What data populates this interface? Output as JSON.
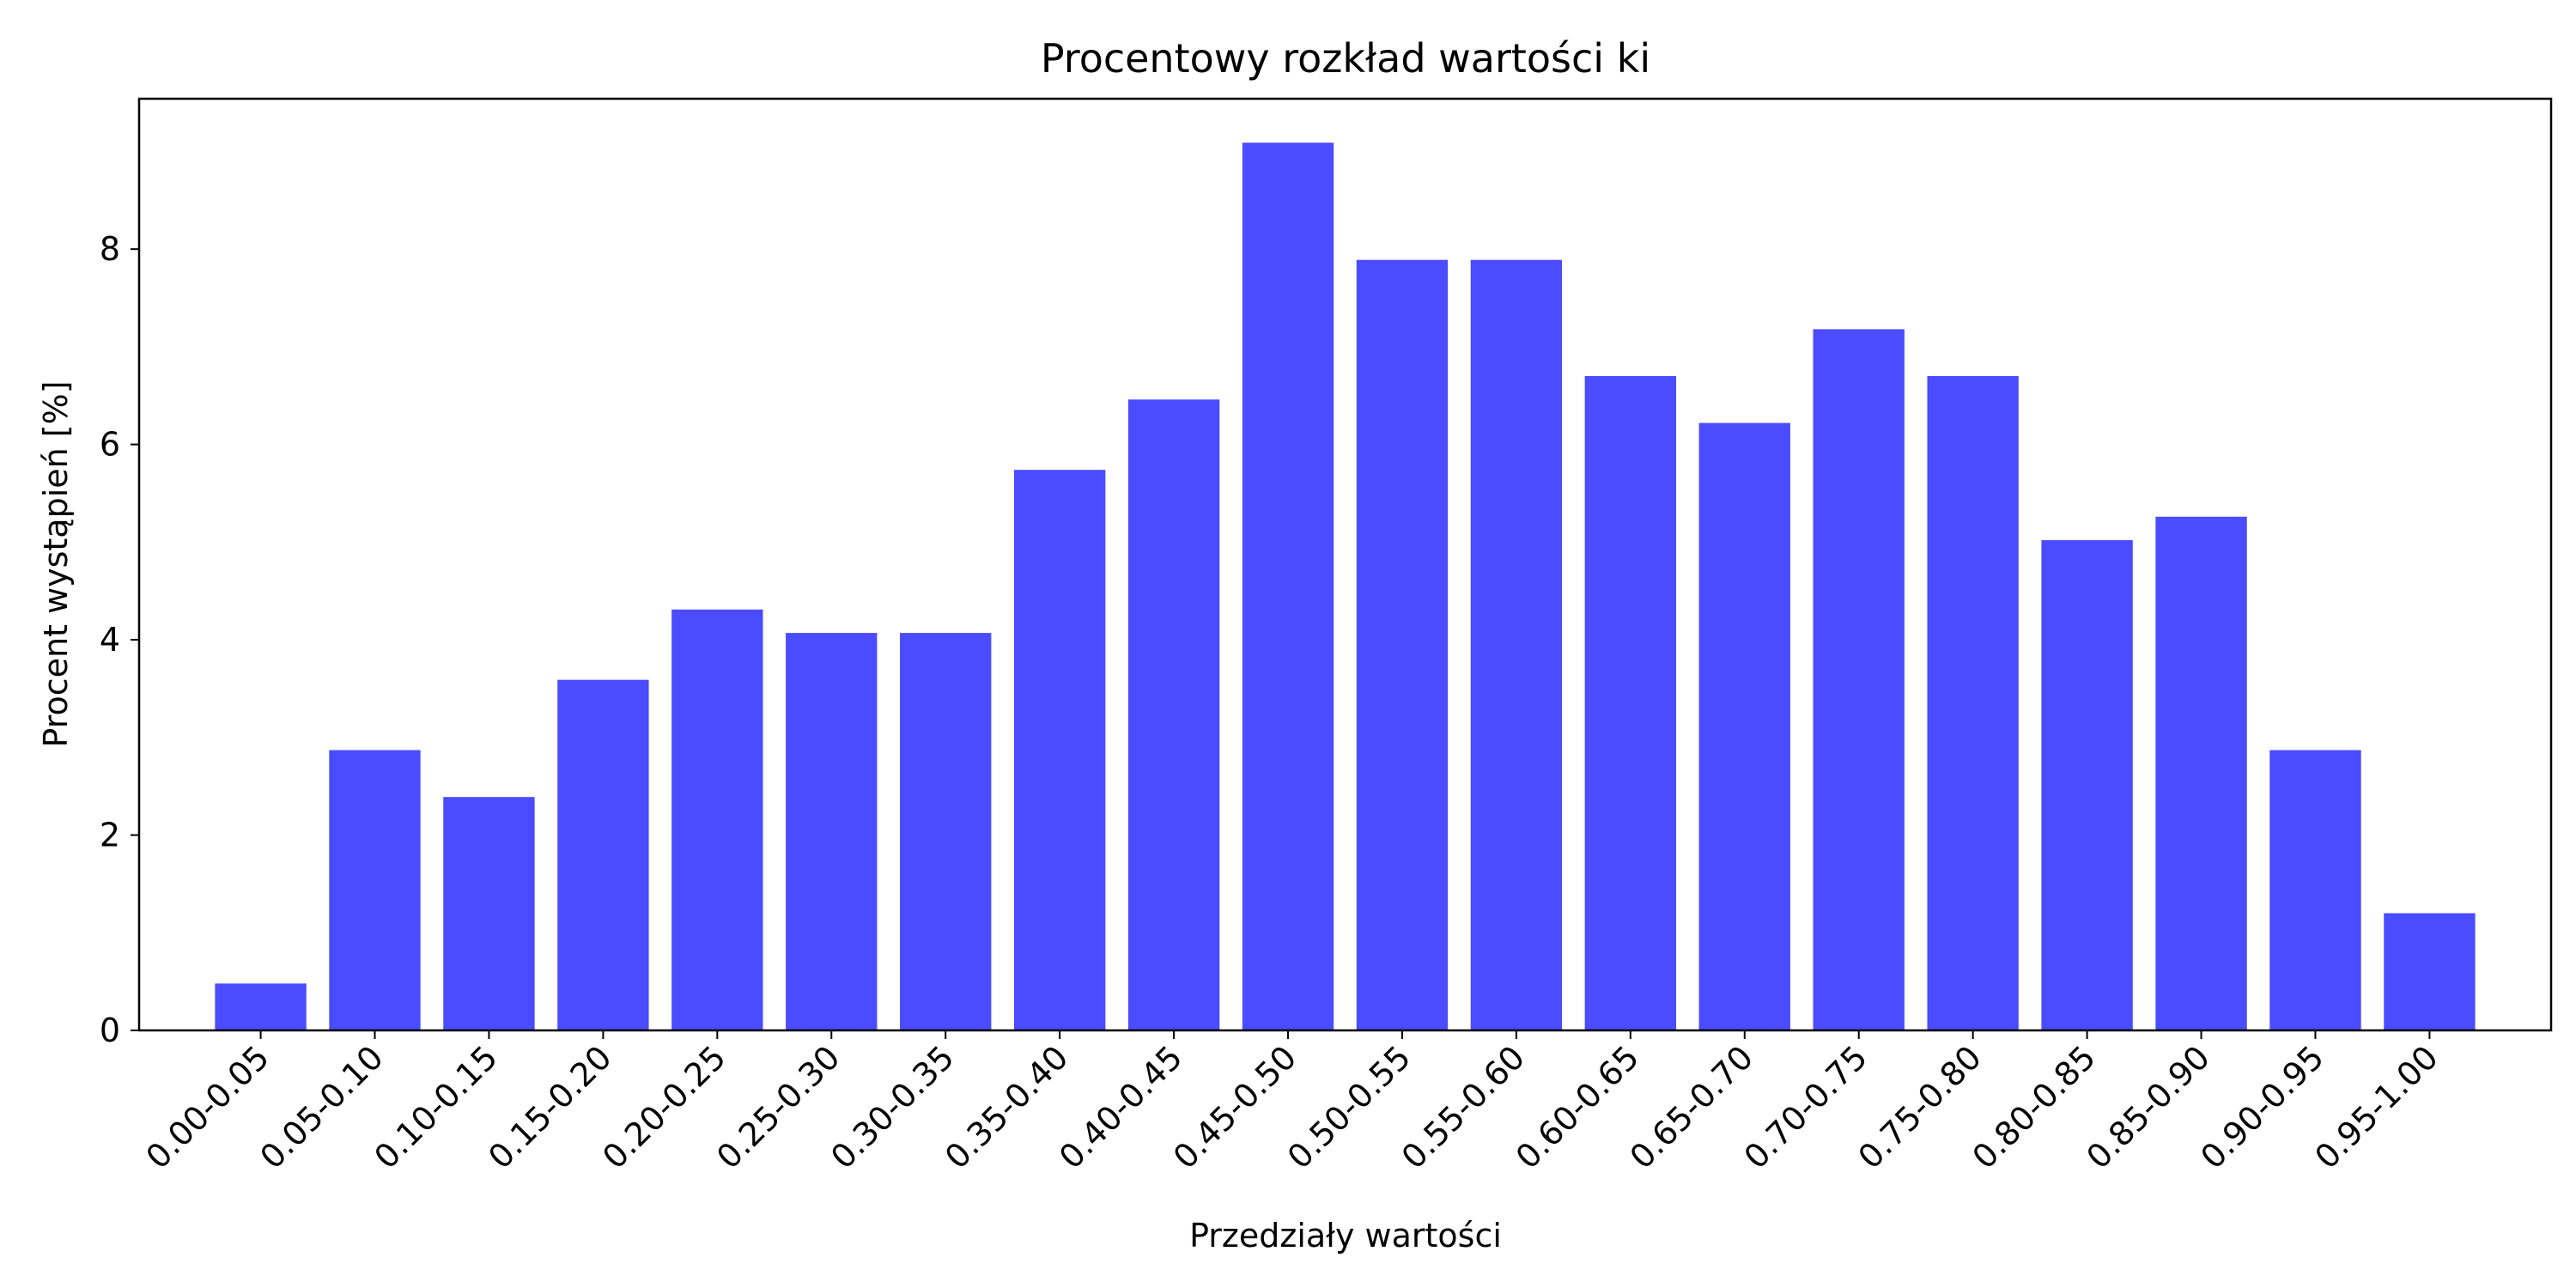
{
  "chart_data": {
    "type": "bar",
    "title": "Procentowy rozkład wartości ki",
    "xlabel": "Przedziały wartości",
    "ylabel": "Procent wystąpień [%]",
    "categories": [
      "0.00-0.05",
      "0.05-0.10",
      "0.10-0.15",
      "0.15-0.20",
      "0.20-0.25",
      "0.25-0.30",
      "0.30-0.35",
      "0.35-0.40",
      "0.40-0.45",
      "0.45-0.50",
      "0.50-0.55",
      "0.55-0.60",
      "0.60-0.65",
      "0.65-0.70",
      "0.70-0.75",
      "0.75-0.80",
      "0.80-0.85",
      "0.85-0.90",
      "0.90-0.95",
      "0.95-1.00"
    ],
    "values": [
      0.48,
      2.87,
      2.39,
      3.59,
      4.31,
      4.07,
      4.07,
      5.74,
      6.46,
      9.09,
      7.89,
      7.89,
      6.7,
      6.22,
      7.18,
      6.7,
      5.02,
      5.26,
      2.87,
      1.2
    ],
    "ylim": [
      0,
      9.54
    ],
    "yticks": [
      0,
      2,
      4,
      6,
      8
    ],
    "bar_color": "#4b4bff",
    "grid": false,
    "xtick_rotation_deg": 45
  }
}
